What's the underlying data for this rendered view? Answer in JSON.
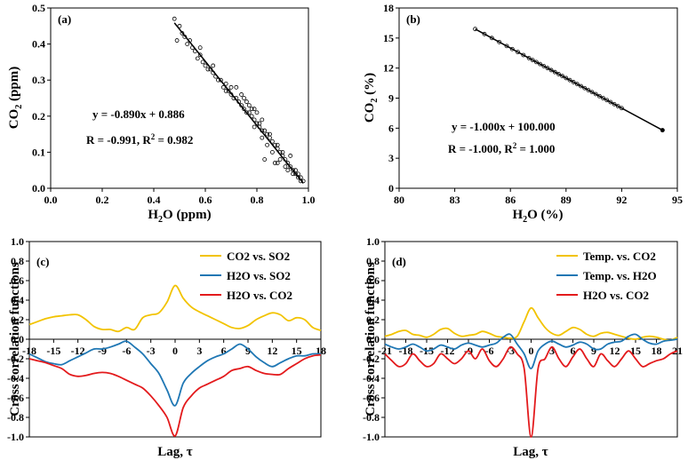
{
  "chart_data": [
    {
      "panel": "(a)",
      "type": "scatter",
      "xlabel": "H2O (ppm)",
      "ylabel": "CO2 (ppm)",
      "xlim": [
        0.0,
        1.0
      ],
      "ylim": [
        0.0,
        0.5
      ],
      "xticks": [
        0.0,
        0.2,
        0.4,
        0.6,
        0.8,
        1.0
      ],
      "yticks": [
        0.0,
        0.1,
        0.2,
        0.3,
        0.4,
        0.5
      ],
      "xtick_labels": [
        "0.0",
        "0.2",
        "0.4",
        "0.6",
        "0.8",
        "1.0"
      ],
      "ytick_labels": [
        "0.0",
        "0.1",
        "0.2",
        "0.3",
        "0.4",
        "0.5"
      ],
      "fit": {
        "slope": -0.89,
        "intercept": 0.886,
        "x_range": [
          0.48,
          0.98
        ]
      },
      "annotations": [
        "y = -0.890x + 0.886",
        "R = -0.991, R2 = 0.982"
      ],
      "points_x": [
        0.48,
        0.49,
        0.5,
        0.51,
        0.52,
        0.53,
        0.54,
        0.55,
        0.56,
        0.57,
        0.58,
        0.59,
        0.6,
        0.61,
        0.62,
        0.63,
        0.64,
        0.65,
        0.66,
        0.67,
        0.68,
        0.69,
        0.7,
        0.71,
        0.72,
        0.73,
        0.74,
        0.75,
        0.76,
        0.77,
        0.78,
        0.79,
        0.8,
        0.81,
        0.82,
        0.83,
        0.84,
        0.85,
        0.86,
        0.87,
        0.88,
        0.89,
        0.9,
        0.91,
        0.92,
        0.93,
        0.94,
        0.95,
        0.96,
        0.97,
        0.98,
        0.58,
        0.63,
        0.68,
        0.72,
        0.75,
        0.77,
        0.79,
        0.8,
        0.82,
        0.84,
        0.86,
        0.88,
        0.9,
        0.92,
        0.94,
        0.95,
        0.97,
        0.7,
        0.74,
        0.78,
        0.81,
        0.83,
        0.85,
        0.87,
        0.89,
        0.91,
        0.93,
        0.96,
        0.76,
        0.79,
        0.82,
        0.88
      ],
      "points_y": [
        0.47,
        0.41,
        0.45,
        0.43,
        0.42,
        0.4,
        0.41,
        0.39,
        0.38,
        0.36,
        0.37,
        0.35,
        0.34,
        0.33,
        0.33,
        0.32,
        0.31,
        0.3,
        0.3,
        0.28,
        0.29,
        0.27,
        0.26,
        0.25,
        0.25,
        0.24,
        0.23,
        0.22,
        0.21,
        0.21,
        0.2,
        0.19,
        0.18,
        0.17,
        0.16,
        0.16,
        0.15,
        0.14,
        0.13,
        0.12,
        0.11,
        0.1,
        0.09,
        0.08,
        0.07,
        0.06,
        0.05,
        0.04,
        0.03,
        0.02,
        0.02,
        0.39,
        0.34,
        0.27,
        0.28,
        0.25,
        0.23,
        0.22,
        0.21,
        0.14,
        0.12,
        0.1,
        0.07,
        0.1,
        0.05,
        0.04,
        0.05,
        0.03,
        0.28,
        0.26,
        0.22,
        0.18,
        0.08,
        0.15,
        0.07,
        0.08,
        0.06,
        0.09,
        0.04,
        0.24,
        0.17,
        0.19,
        0.12
      ]
    },
    {
      "panel": "(b)",
      "type": "scatter",
      "xlabel": "H2O (%)",
      "ylabel": "CO2 (%)",
      "xlim": [
        80,
        95
      ],
      "ylim": [
        0,
        18
      ],
      "xticks": [
        80,
        83,
        86,
        89,
        92,
        95
      ],
      "yticks": [
        0,
        3,
        6,
        9,
        12,
        15,
        18
      ],
      "xtick_labels": [
        "80",
        "83",
        "86",
        "89",
        "92",
        "95"
      ],
      "ytick_labels": [
        "0",
        "3",
        "6",
        "9",
        "12",
        "15",
        "18"
      ],
      "fit": {
        "slope": -1.0,
        "intercept": 100.0,
        "x_range": [
          84.1,
          94.2
        ]
      },
      "annotations": [
        "y = -1.000x + 100.000",
        "R = -1.000, R2 = 1.000"
      ],
      "points_x": [
        84.1,
        84.6,
        85.0,
        85.4,
        85.8,
        86.1,
        86.4,
        86.7,
        87.0,
        87.2,
        87.4,
        87.6,
        87.8,
        88.0,
        88.2,
        88.4,
        88.6,
        88.8,
        89.0,
        89.2,
        89.4,
        89.6,
        89.8,
        90.0,
        90.2,
        90.4,
        90.6,
        90.8,
        91.0,
        91.2,
        91.4,
        91.6,
        91.8,
        92.0,
        94.2
      ],
      "points_y": [
        15.9,
        15.4,
        15.0,
        14.6,
        14.2,
        13.9,
        13.6,
        13.3,
        13.0,
        12.8,
        12.6,
        12.4,
        12.2,
        12.0,
        11.8,
        11.6,
        11.4,
        11.2,
        11.0,
        10.8,
        10.6,
        10.4,
        10.2,
        10.0,
        9.8,
        9.6,
        9.4,
        9.2,
        9.0,
        8.8,
        8.6,
        8.4,
        8.2,
        8.0,
        5.8
      ]
    },
    {
      "panel": "(c)",
      "type": "line",
      "xlabel": "Lag, τ",
      "ylabel": "Cross correlation functions",
      "xlim": [
        -18,
        18
      ],
      "ylim": [
        -1.0,
        1.0
      ],
      "xticks": [
        -18,
        -15,
        -12,
        -9,
        -6,
        -3,
        0,
        3,
        6,
        9,
        12,
        15,
        18
      ],
      "yticks": [
        -1.0,
        -0.8,
        -0.6,
        -0.4,
        -0.2,
        0.0,
        0.2,
        0.4,
        0.6,
        0.8,
        1.0
      ],
      "xtick_labels": [
        "-18",
        "-15",
        "-12",
        "-9",
        "-6",
        "-3",
        "0",
        "3",
        "6",
        "9",
        "12",
        "15",
        "18"
      ],
      "ytick_labels": [
        "-1.0",
        "-0.8",
        "-0.6",
        "-0.4",
        "-0.2",
        "0.0",
        "0.2",
        "0.4",
        "0.6",
        "0.8",
        "1.0"
      ],
      "x": [
        -18,
        -17,
        -16,
        -15,
        -14,
        -13,
        -12,
        -11,
        -10,
        -9,
        -8,
        -7,
        -6,
        -5,
        -4,
        -3,
        -2,
        -1,
        0,
        1,
        2,
        3,
        4,
        5,
        6,
        7,
        8,
        9,
        10,
        11,
        12,
        13,
        14,
        15,
        16,
        17,
        18
      ],
      "series": [
        {
          "name": "CO2 vs. SO2",
          "color": "#f2c300",
          "values": [
            0.15,
            0.18,
            0.21,
            0.23,
            0.24,
            0.25,
            0.25,
            0.2,
            0.13,
            0.1,
            0.1,
            0.08,
            0.12,
            0.1,
            0.22,
            0.25,
            0.27,
            0.38,
            0.55,
            0.42,
            0.33,
            0.28,
            0.24,
            0.2,
            0.16,
            0.12,
            0.11,
            0.14,
            0.2,
            0.24,
            0.27,
            0.25,
            0.19,
            0.22,
            0.2,
            0.12,
            0.09
          ]
        },
        {
          "name": "H2O vs. SO2",
          "color": "#1f77b4",
          "values": [
            -0.15,
            -0.19,
            -0.23,
            -0.25,
            -0.26,
            -0.22,
            -0.18,
            -0.14,
            -0.1,
            -0.1,
            -0.08,
            -0.05,
            -0.02,
            -0.08,
            -0.15,
            -0.25,
            -0.35,
            -0.52,
            -0.68,
            -0.45,
            -0.35,
            -0.28,
            -0.22,
            -0.18,
            -0.15,
            -0.1,
            -0.05,
            -0.1,
            -0.18,
            -0.24,
            -0.28,
            -0.24,
            -0.2,
            -0.17,
            -0.17,
            -0.15,
            -0.15
          ]
        },
        {
          "name": "H2O vs. CO2",
          "color": "#e31a1c",
          "values": [
            -0.2,
            -0.22,
            -0.24,
            -0.27,
            -0.3,
            -0.36,
            -0.38,
            -0.37,
            -0.35,
            -0.34,
            -0.35,
            -0.38,
            -0.42,
            -0.46,
            -0.5,
            -0.58,
            -0.68,
            -0.8,
            -0.99,
            -0.7,
            -0.58,
            -0.5,
            -0.46,
            -0.42,
            -0.38,
            -0.32,
            -0.3,
            -0.28,
            -0.32,
            -0.35,
            -0.36,
            -0.36,
            -0.3,
            -0.25,
            -0.2,
            -0.17,
            -0.16
          ]
        }
      ],
      "legend": "top-right"
    },
    {
      "panel": "(d)",
      "type": "line",
      "xlabel": "Lag, τ",
      "ylabel": "Cross correlation functions",
      "xlim": [
        -21,
        21
      ],
      "ylim": [
        -1.0,
        1.0
      ],
      "xticks": [
        -21,
        -18,
        -15,
        -12,
        -9,
        -6,
        -3,
        0,
        3,
        6,
        9,
        12,
        15,
        18,
        21
      ],
      "yticks": [
        -1.0,
        -0.8,
        -0.6,
        -0.4,
        -0.2,
        0.0,
        0.2,
        0.4,
        0.6,
        0.8,
        1.0
      ],
      "xtick_labels": [
        "-21",
        "-18",
        "-15",
        "-12",
        "-9",
        "-6",
        "-3",
        "0",
        "3",
        "6",
        "9",
        "12",
        "15",
        "18",
        "21"
      ],
      "ytick_labels": [
        "-1.0",
        "-0.8",
        "-0.6",
        "-0.4",
        "-0.2",
        "0.0",
        "0.2",
        "0.4",
        "0.6",
        "0.8",
        "1.0"
      ],
      "x": [
        -21,
        -20,
        -19,
        -18,
        -17,
        -16,
        -15,
        -14,
        -13,
        -12,
        -11,
        -10,
        -9,
        -8,
        -7,
        -6,
        -5,
        -4,
        -3,
        -2,
        -1,
        0,
        1,
        2,
        3,
        4,
        5,
        6,
        7,
        8,
        9,
        10,
        11,
        12,
        13,
        14,
        15,
        16,
        17,
        18,
        19,
        20,
        21
      ],
      "series": [
        {
          "name": "Temp. vs. CO2",
          "color": "#f2c300",
          "values": [
            0.03,
            0.05,
            0.08,
            0.09,
            0.05,
            0.04,
            0.02,
            0.05,
            0.1,
            0.11,
            0.06,
            0.03,
            0.04,
            0.05,
            0.08,
            0.06,
            0.03,
            0.02,
            0.01,
            0.03,
            0.18,
            0.32,
            0.22,
            0.12,
            0.06,
            0.04,
            0.08,
            0.12,
            0.1,
            0.05,
            0.03,
            0.06,
            0.07,
            0.05,
            0.03,
            0.01,
            0.0,
            0.02,
            0.03,
            0.02,
            0.0,
            -0.01,
            0.02
          ]
        },
        {
          "name": "Temp. vs. H2O",
          "color": "#1f77b4",
          "values": [
            -0.05,
            -0.08,
            -0.1,
            -0.08,
            -0.05,
            -0.08,
            -0.12,
            -0.1,
            -0.06,
            -0.08,
            -0.1,
            -0.06,
            -0.04,
            -0.06,
            -0.08,
            -0.06,
            -0.04,
            0.02,
            0.05,
            -0.05,
            -0.15,
            -0.3,
            -0.12,
            -0.05,
            -0.02,
            -0.05,
            -0.08,
            -0.06,
            -0.03,
            -0.05,
            -0.1,
            -0.1,
            -0.05,
            -0.03,
            -0.02,
            0.03,
            0.05,
            0.0,
            -0.04,
            -0.05,
            -0.02,
            -0.01,
            0.0
          ]
        },
        {
          "name": "H2O vs. CO2",
          "color": "#e31a1c",
          "values": [
            -0.15,
            -0.22,
            -0.28,
            -0.25,
            -0.15,
            -0.22,
            -0.28,
            -0.25,
            -0.15,
            -0.2,
            -0.25,
            -0.2,
            -0.12,
            -0.2,
            -0.1,
            -0.22,
            -0.28,
            -0.2,
            -0.08,
            -0.15,
            -0.3,
            -1.0,
            -0.3,
            -0.2,
            -0.08,
            -0.2,
            -0.28,
            -0.18,
            -0.1,
            -0.2,
            -0.28,
            -0.15,
            -0.22,
            -0.28,
            -0.2,
            -0.12,
            -0.2,
            -0.28,
            -0.25,
            -0.22,
            -0.2,
            -0.15,
            -0.12
          ]
        }
      ],
      "legend": "top-right"
    }
  ]
}
